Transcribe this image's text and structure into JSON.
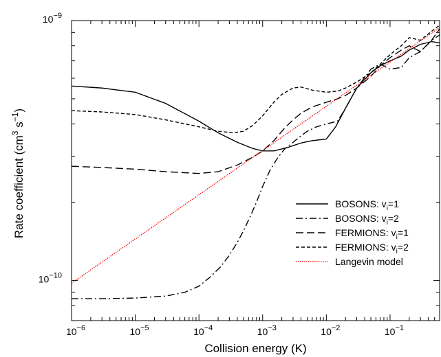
{
  "chart_data": {
    "type": "line",
    "title": "",
    "xlabel": "Collision energy (K)",
    "ylabel": {
      "prefix": "Rate coefficient  (cm",
      "exp1": "3",
      "mid": " s",
      "exp2": "−1",
      "suffix": ")"
    },
    "x_scale": "log",
    "y_scale": "log",
    "xlim": [
      1e-06,
      0.6
    ],
    "ylim": [
      7e-11,
      1e-09
    ],
    "x_ticks": [
      {
        "value": 1e-06,
        "base": "10",
        "exp": "−6"
      },
      {
        "value": 1e-05,
        "base": "10",
        "exp": "−5"
      },
      {
        "value": 0.0001,
        "base": "10",
        "exp": "−4"
      },
      {
        "value": 0.001,
        "base": "10",
        "exp": "−3"
      },
      {
        "value": 0.01,
        "base": "10",
        "exp": "−2"
      },
      {
        "value": 0.1,
        "base": "10",
        "exp": "−1"
      }
    ],
    "y_ticks": [
      {
        "value": 1e-10,
        "base": "10",
        "exp": "−10"
      },
      {
        "value": 1e-09,
        "base": "10",
        "exp": "−9"
      }
    ],
    "grid": false,
    "legend_position": "bottom-right",
    "series": [
      {
        "name": {
          "base": "BOSONS: v",
          "sub": "i",
          "tail": "=1"
        },
        "color": "#000000",
        "dash": "solid",
        "x": [
          1e-06,
          3e-06,
          1e-05,
          3e-05,
          0.0001,
          0.0002,
          0.0004,
          0.0007,
          0.001,
          0.0015,
          0.0025,
          0.004,
          0.006,
          0.01,
          0.014,
          0.02,
          0.03,
          0.05,
          0.07,
          0.1,
          0.15,
          0.2,
          0.3,
          0.45,
          0.6
        ],
        "y": [
          5.6e-10,
          5.5e-10,
          5.3e-10,
          4.8e-10,
          4.1e-10,
          3.7e-10,
          3.4e-10,
          3.22e-10,
          3.15e-10,
          3.15e-10,
          3.25e-10,
          3.38e-10,
          3.45e-10,
          3.5e-10,
          3.9e-10,
          4.6e-10,
          5.5e-10,
          6.3e-10,
          6.7e-10,
          7e-10,
          7.3e-10,
          7.7e-10,
          8.1e-10,
          8.3e-10,
          8.2e-10
        ]
      },
      {
        "name": {
          "base": "BOSONS: v",
          "sub": "i",
          "tail": "=2"
        },
        "color": "#000000",
        "dash": "dashdot",
        "x": [
          1e-06,
          3e-06,
          1e-05,
          3e-05,
          6e-05,
          0.0001,
          0.00015,
          0.00022,
          0.0003,
          0.0004,
          0.0005,
          0.00065,
          0.0008,
          0.001,
          0.0013,
          0.0017,
          0.0022,
          0.003,
          0.004,
          0.005,
          0.007,
          0.01,
          0.015,
          0.02,
          0.03,
          0.05,
          0.07,
          0.1,
          0.15,
          0.2,
          0.3,
          0.45,
          0.6
        ],
        "y": [
          8.5e-11,
          8.5e-11,
          8.55e-11,
          8.7e-11,
          9e-11,
          9.5e-11,
          1.03e-10,
          1.13e-10,
          1.25e-10,
          1.4e-10,
          1.55e-10,
          1.78e-10,
          2e-10,
          2.3e-10,
          2.65e-10,
          2.95e-10,
          3.2e-10,
          3.4e-10,
          3.6e-10,
          3.75e-10,
          3.9e-10,
          4e-10,
          4.1e-10,
          4.6e-10,
          5.5e-10,
          6.5e-10,
          6.8e-10,
          6.5e-10,
          6.6e-10,
          7.2e-10,
          7.6e-10,
          8.4e-10,
          8.8e-10
        ]
      },
      {
        "name": {
          "base": "FERMIONS: v",
          "sub": "i",
          "tail": "=1"
        },
        "color": "#000000",
        "dash": "longdash",
        "x": [
          1e-06,
          3e-06,
          1e-05,
          3e-05,
          0.0001,
          0.0002,
          0.0004,
          0.0007,
          0.001,
          0.0015,
          0.0022,
          0.003,
          0.004,
          0.006,
          0.01,
          0.015,
          0.02,
          0.03,
          0.05,
          0.07,
          0.1,
          0.15,
          0.2,
          0.3,
          0.45,
          0.6
        ],
        "y": [
          2.75e-10,
          2.72e-10,
          2.68e-10,
          2.62e-10,
          2.58e-10,
          2.62e-10,
          2.78e-10,
          2.98e-10,
          3.15e-10,
          3.45e-10,
          3.85e-10,
          4.15e-10,
          4.4e-10,
          4.65e-10,
          4.85e-10,
          5e-10,
          5.15e-10,
          5.5e-10,
          6.1e-10,
          6.7e-10,
          7.2e-10,
          7.7e-10,
          8e-10,
          7.6e-10,
          8.4e-10,
          9.3e-10
        ]
      },
      {
        "name": {
          "base": "FERMIONS: v",
          "sub": "i",
          "tail": "=2"
        },
        "color": "#000000",
        "dash": "shortdash",
        "x": [
          1e-06,
          3e-06,
          1e-05,
          3e-05,
          0.0001,
          0.0002,
          0.00035,
          0.0005,
          0.0007,
          0.001,
          0.0015,
          0.002,
          0.003,
          0.004,
          0.006,
          0.01,
          0.015,
          0.02,
          0.03,
          0.05,
          0.07,
          0.1,
          0.15,
          0.2,
          0.3,
          0.45,
          0.6
        ],
        "y": [
          4.5e-10,
          4.45e-10,
          4.35e-10,
          4.15e-10,
          3.9e-10,
          3.75e-10,
          3.7e-10,
          3.75e-10,
          3.95e-10,
          4.3e-10,
          4.85e-10,
          5.2e-10,
          5.5e-10,
          5.55e-10,
          5.4e-10,
          5.3e-10,
          5.35e-10,
          5.5e-10,
          5.8e-10,
          6.3e-10,
          6.8e-10,
          7.4e-10,
          8e-10,
          8.6e-10,
          8.4e-10,
          9.1e-10,
          9.6e-10
        ]
      },
      {
        "name": {
          "base": "Langevin model",
          "sub": "",
          "tail": ""
        },
        "color": "#ff0000",
        "dash": "dotted",
        "x": [
          1e-06,
          0.6
        ],
        "y": [
          9.75e-11,
          9.4e-10
        ]
      }
    ]
  }
}
